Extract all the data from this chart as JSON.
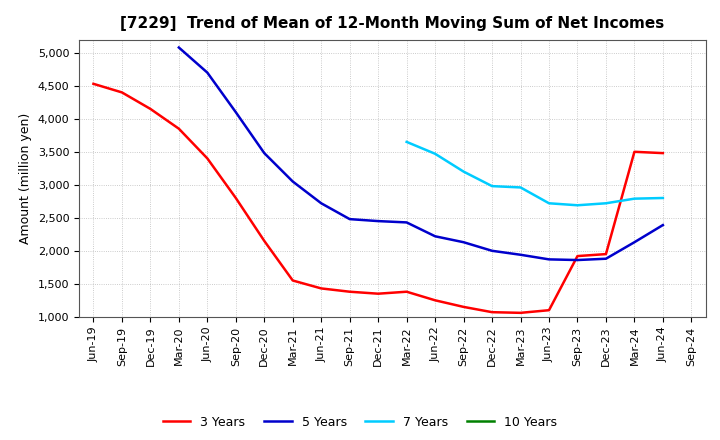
{
  "title": "[7229]  Trend of Mean of 12-Month Moving Sum of Net Incomes",
  "ylabel": "Amount (million yen)",
  "ylim": [
    1000,
    5200
  ],
  "yticks": [
    1000,
    1500,
    2000,
    2500,
    3000,
    3500,
    4000,
    4500,
    5000
  ],
  "background_color": "#ffffff",
  "grid_color": "#aaaaaa",
  "x_labels": [
    "Jun-19",
    "Sep-19",
    "Dec-19",
    "Mar-20",
    "Jun-20",
    "Sep-20",
    "Dec-20",
    "Mar-21",
    "Jun-21",
    "Sep-21",
    "Dec-21",
    "Mar-22",
    "Jun-22",
    "Sep-22",
    "Dec-22",
    "Mar-23",
    "Jun-23",
    "Sep-23",
    "Dec-23",
    "Mar-24",
    "Jun-24",
    "Sep-24"
  ],
  "series": {
    "3 Years": {
      "color": "#ff0000",
      "data_x": [
        0,
        1,
        2,
        3,
        4,
        5,
        6,
        7,
        8,
        9,
        10,
        11,
        12,
        13,
        14,
        15,
        16,
        17,
        18,
        19,
        20
      ],
      "data_y": [
        4530,
        4400,
        4150,
        3850,
        3400,
        2800,
        2150,
        1550,
        1430,
        1380,
        1350,
        1380,
        1250,
        1150,
        1070,
        1060,
        1100,
        1920,
        1950,
        3500,
        3480
      ]
    },
    "5 Years": {
      "color": "#0000cc",
      "data_x": [
        3,
        4,
        5,
        6,
        7,
        8,
        9,
        10,
        11,
        12,
        13,
        14,
        15,
        16,
        17,
        18,
        19,
        20
      ],
      "data_y": [
        5080,
        4700,
        4100,
        3480,
        3050,
        2720,
        2480,
        2450,
        2430,
        2220,
        2130,
        2000,
        1940,
        1870,
        1860,
        1880,
        2130,
        2390
      ]
    },
    "7 Years": {
      "color": "#00ccff",
      "data_x": [
        11,
        12,
        13,
        14,
        15,
        16,
        17,
        18,
        19,
        20
      ],
      "data_y": [
        3650,
        3470,
        3200,
        2980,
        2960,
        2720,
        2690,
        2720,
        2790,
        2800
      ]
    },
    "10 Years": {
      "color": "#008000",
      "data_x": [],
      "data_y": []
    }
  },
  "title_fontsize": 11,
  "axis_fontsize": 9,
  "tick_fontsize": 8,
  "legend_fontsize": 9,
  "linewidth": 1.8
}
